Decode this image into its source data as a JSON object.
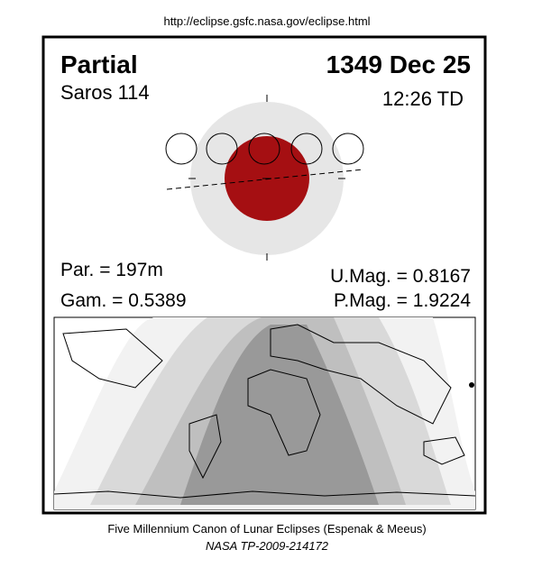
{
  "header": {
    "url": "http://eclipse.gsfc.nasa.gov/eclipse.html"
  },
  "eclipse": {
    "type": "Partial",
    "date": "1349 Dec 25",
    "saros": "Saros 114",
    "time": "12:26 TD",
    "par": "Par. = 197m",
    "gam": "Gam. = 0.5389",
    "umag": "U.Mag. = 0.8167",
    "pmag": "P.Mag. = 1.9224"
  },
  "footer": {
    "title": "Five Millennium Canon of Lunar Eclipses (Espenak & Meeus)",
    "reference": "NASA TP-2009-214172"
  }
}
